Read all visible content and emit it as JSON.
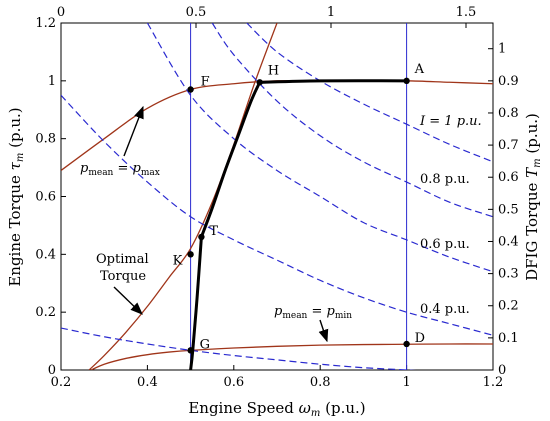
{
  "chart_data": {
    "type": "line",
    "xlabel": {
      "main": "Engine Speed ",
      "var": "ω",
      "sub": "m",
      "unit": " (p.u.)"
    },
    "ylabel_left": {
      "main": "Engine Torque ",
      "var": "τ",
      "sub": "m",
      "unit": " (p.u.)"
    },
    "ylabel_right": {
      "main": "DFIG Torque ",
      "var": "T",
      "sub": "m",
      "unit": " (p.u.)"
    },
    "xlim": [
      0.2,
      1.2
    ],
    "ylim": [
      0,
      1.2
    ],
    "top_axis": {
      "lim": [
        0,
        1.6
      ],
      "ticks": [
        0,
        0.5,
        1,
        1.5
      ],
      "labels": [
        "0",
        "0.5",
        "1",
        "1.5"
      ]
    },
    "right_axis": {
      "lim": [
        0,
        1.08
      ],
      "ticks": [
        0,
        0.1,
        0.2,
        0.3,
        0.4,
        0.5,
        0.6,
        0.7,
        0.8,
        0.9,
        1
      ],
      "labels": [
        "0",
        "0.1",
        "0.2",
        "0.3",
        "0.4",
        "0.5",
        "0.6",
        "0.7",
        "0.8",
        "0.9",
        "1"
      ]
    },
    "x_ticks": [
      0.2,
      0.4,
      0.6,
      0.8,
      1,
      1.2
    ],
    "x_tick_labels": [
      "0.2",
      "0.4",
      "0.6",
      "0.8",
      "1",
      "1.2"
    ],
    "y_ticks": [
      0,
      0.2,
      0.4,
      0.6,
      0.8,
      1,
      1.2
    ],
    "y_tick_labels": [
      "0",
      "0.2",
      "0.4",
      "0.6",
      "0.8",
      "1",
      "1.2"
    ],
    "vertical_lines": [
      0.5,
      1.0
    ],
    "colors": {
      "brown": "#a0351a",
      "blue": "#2a2ad0",
      "operating": "#000000"
    },
    "series": [
      {
        "style": "brown",
        "x": [
          0.2,
          0.3,
          0.4,
          0.5,
          0.6,
          0.7,
          0.8,
          0.9,
          1.0,
          1.1,
          1.2
        ],
        "y": [
          0.69,
          0.8,
          0.905,
          0.97,
          0.99,
          1.0,
          1.0,
          1.0,
          1.0,
          0.995,
          0.99
        ]
      },
      {
        "style": "brown",
        "x": [
          0.27,
          0.3,
          0.35,
          0.4,
          0.45,
          0.5,
          0.6,
          0.7,
          0.8,
          0.9,
          1.0,
          1.1,
          1.2
        ],
        "y": [
          0.0,
          0.02,
          0.04,
          0.053,
          0.062,
          0.068,
          0.076,
          0.082,
          0.086,
          0.088,
          0.089,
          0.09,
          0.09
        ]
      },
      {
        "style": "brown",
        "x": [
          0.265,
          0.3,
          0.35,
          0.4,
          0.45,
          0.5,
          0.55,
          0.6,
          0.65,
          0.7
        ],
        "y": [
          0.0,
          0.05,
          0.13,
          0.22,
          0.32,
          0.42,
          0.58,
          0.78,
          1.0,
          1.2
        ]
      },
      {
        "style": "blue",
        "x": [
          0.2,
          0.3,
          0.4,
          0.5,
          0.6,
          0.7,
          0.8,
          0.9,
          1.0,
          1.1,
          1.2
        ],
        "y": [
          0.145,
          0.115,
          0.09,
          0.068,
          0.05,
          0.035,
          0.02,
          0.008,
          0.0,
          -0.01,
          -0.02
        ]
      },
      {
        "style": "blue",
        "x": [
          0.2,
          0.3,
          0.4,
          0.5,
          0.6,
          0.7,
          0.8,
          0.9,
          1.0,
          1.1,
          1.2
        ],
        "y": [
          0.95,
          0.79,
          0.65,
          0.53,
          0.45,
          0.38,
          0.31,
          0.25,
          0.2,
          0.16,
          0.12
        ]
      },
      {
        "style": "blue",
        "x": [
          0.4,
          0.5,
          0.6,
          0.7,
          0.8,
          0.9,
          1.0,
          1.1,
          1.2
        ],
        "y": [
          1.2,
          0.95,
          0.8,
          0.69,
          0.6,
          0.51,
          0.45,
          0.39,
          0.34
        ]
      },
      {
        "style": "blue",
        "x": [
          0.55,
          0.6,
          0.7,
          0.8,
          0.9,
          1.0,
          1.1,
          1.2
        ],
        "y": [
          1.2,
          1.09,
          0.93,
          0.81,
          0.72,
          0.65,
          0.58,
          0.53
        ]
      },
      {
        "style": "blue",
        "x": [
          0.63,
          0.7,
          0.8,
          0.9,
          1.0,
          1.1,
          1.2
        ],
        "y": [
          1.2,
          1.1,
          1.0,
          0.92,
          0.85,
          0.78,
          0.72
        ]
      },
      {
        "style": "operating",
        "x": [
          0.5,
          0.505,
          0.515,
          0.525
        ],
        "y": [
          0.0,
          0.068,
          0.25,
          0.46
        ]
      },
      {
        "style": "operating",
        "x": [
          0.525,
          0.55,
          0.58,
          0.61,
          0.64,
          0.66
        ],
        "y": [
          0.46,
          0.56,
          0.69,
          0.81,
          0.93,
          0.995
        ]
      },
      {
        "style": "operating",
        "x": [
          0.66,
          0.8,
          1.0
        ],
        "y": [
          0.995,
          1.0,
          1.0
        ]
      }
    ],
    "points": [
      {
        "label": "F",
        "x": 0.5,
        "y": 0.97
      },
      {
        "label": "H",
        "x": 0.66,
        "y": 0.995
      },
      {
        "label": "A",
        "x": 1.0,
        "y": 1.0
      },
      {
        "label": "T",
        "x": 0.525,
        "y": 0.46
      },
      {
        "label": "K",
        "x": 0.5,
        "y": 0.4
      },
      {
        "label": "G",
        "x": 0.5,
        "y": 0.068
      },
      {
        "label": "D",
        "x": 1.0,
        "y": 0.09
      }
    ],
    "annotations": {
      "current_1": "I = 1 p.u.",
      "current_08": "0.8 p.u.",
      "current_06": "0.6 p.u.",
      "current_04": "0.4 p.u.",
      "pmax": {
        "p": "p",
        "mean": "mean",
        "eq": " = ",
        "rp": "p",
        "rsub": "max"
      },
      "pmin": {
        "p": "p",
        "mean": "mean",
        "eq": " = ",
        "rp": "p",
        "rsub": "min"
      },
      "optimal_1": "Optimal",
      "optimal_2": "Torque"
    }
  }
}
